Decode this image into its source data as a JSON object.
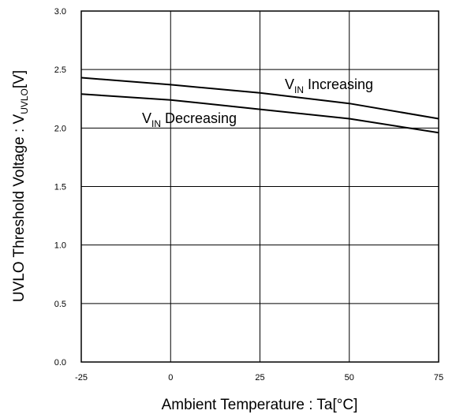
{
  "chart_data": {
    "type": "line",
    "xlabel": "Ambient Temperature : Ta[°C]",
    "ylabel": {
      "main": "UVLO Threshold Voltage : V",
      "sub": "UVLO",
      "unit": "[V]"
    },
    "xlim": [
      -25,
      75
    ],
    "ylim": [
      0.0,
      3.0
    ],
    "x_ticks": [
      -25,
      0,
      25,
      50,
      75
    ],
    "x_tick_labels": [
      "-25",
      "0",
      "25",
      "50",
      "75"
    ],
    "y_ticks": [
      0.0,
      0.5,
      1.0,
      1.5,
      2.0,
      2.5,
      3.0
    ],
    "y_tick_labels": [
      "0.0",
      "0.5",
      "1.0",
      "1.5",
      "2.0",
      "2.5",
      "3.0"
    ],
    "grid": true,
    "line_color": "#000000",
    "series": [
      {
        "key": "increasing",
        "label": {
          "main": "V",
          "sub": "IN",
          "rest": " Increasing"
        },
        "x": [
          -25,
          0,
          25,
          50,
          75
        ],
        "y": [
          2.43,
          2.37,
          2.3,
          2.21,
          2.08
        ]
      },
      {
        "key": "decreasing",
        "label": {
          "main": "V",
          "sub": "IN",
          "rest": " Decreasing"
        },
        "x": [
          -25,
          0,
          25,
          50,
          75
        ],
        "y": [
          2.29,
          2.24,
          2.16,
          2.08,
          1.96
        ]
      }
    ]
  }
}
